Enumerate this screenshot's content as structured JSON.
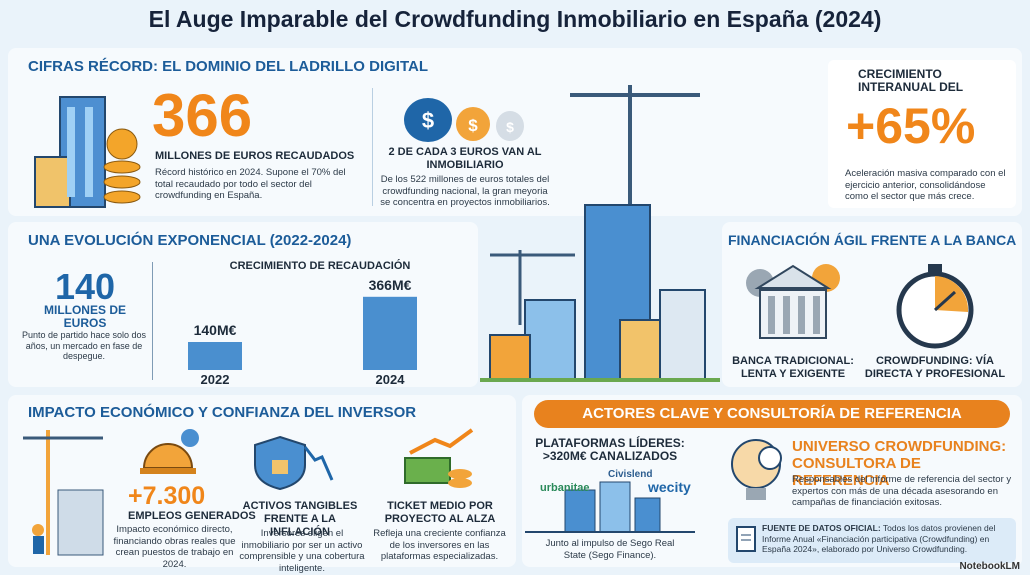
{
  "header": {
    "title": "El Auge Imparable del Crowdfunding Inmobiliario en España (2024)"
  },
  "records": {
    "heading": "CIFRAS RÉCORD: EL DOMINIO DEL LADRILLO DIGITAL",
    "raised": {
      "value": "366",
      "label": "MILLONES DE EUROS RECAUDADOS",
      "text": "Récord histórico en 2024. Supone el 70% del total recaudado por todo el sector del crowdfunding en España."
    },
    "share": {
      "label": "2 DE CADA 3 EUROS VAN AL INMOBILIARIO",
      "text": "De los 522 millones de euros totales del crowdfunding nacional, la gran meyoria se concentra en proyectos inmobiliarios."
    },
    "growth": {
      "label": "CRECIMIENTO INTERANUAL DEL",
      "value": "+65%",
      "text": "Aceleración masiva comparado con el ejercicio anterior, consolidándose como el sector que más crece."
    }
  },
  "evolution": {
    "heading": "UNA EVOLUCIÓN EXPONENCIAL (2022-2024)",
    "start": {
      "value": "140",
      "label": "MILLONES DE EUROS",
      "text": "Punto de partido hace solo dos años, un mercado en fase de despegue."
    },
    "chart": {
      "title": "CRECIMIENTO DE RECAUDACIÓN",
      "categories": [
        "2022",
        "2024"
      ],
      "values": [
        140,
        366
      ],
      "value_labels": [
        "140M€",
        "366M€"
      ],
      "color": "#4a8fcf"
    }
  },
  "banking": {
    "heading": "FINANCIACIÓN ÁGIL FRENTE A LA BANCA",
    "bank": "BANCA TRADICIONAL: LENTA Y EXIGENTE",
    "crowd": "CROWDFUNDING: VÍA DIRECTA Y PROFESIONAL"
  },
  "impact": {
    "heading": "IMPACTO ECONÓMICO Y CONFIANZA DEL INVERSOR",
    "jobs": {
      "value": "+7.300",
      "label": "EMPLEOS GENERADOS",
      "text": "Impacto económico directo, financiando obras reales que crean puestos de trabajo en 2024."
    },
    "assets": {
      "label": "ACTIVOS TANGIBLES FRENTE A LA INFLACIÓN",
      "text": "Inversores eligen el inmobiliario por ser un activo comprensible y una cobertura inteligente."
    },
    "ticket": {
      "label": "TICKET MEDIO POR PROYECTO AL ALZA",
      "text": "Refleja una creciente confianza de los inversores en las plataformas especializadas."
    }
  },
  "actors": {
    "heading": "ACTORES CLAVE Y CONSULTORÍA DE REFERENCIA",
    "platforms": {
      "label": "PLATAFORMAS LÍDERES: >320M€ CANALIZADOS",
      "logos": [
        "Civislend",
        "urbanitae",
        "wecity"
      ],
      "text": "Junto al impulso de Sego Real State (Sego Finance)."
    },
    "consultant": {
      "label": "UNIVERSO CROWDFUNDING: CONSULTORA DE REFERENCIA",
      "text": "Responsables del informe de referencia del sector y expertos con más de una década asesorando en campañas de financiación exitosas."
    },
    "source": {
      "label": "FUENTE DE DATOS OFICIAL:",
      "text": "Todos los datos provienen del Informe Anual «Financiación participativa (Crowdfunding) en España 2024», elaborado por Universo Crowdfunding."
    }
  },
  "footer": {
    "brand": "NotebookLM"
  }
}
